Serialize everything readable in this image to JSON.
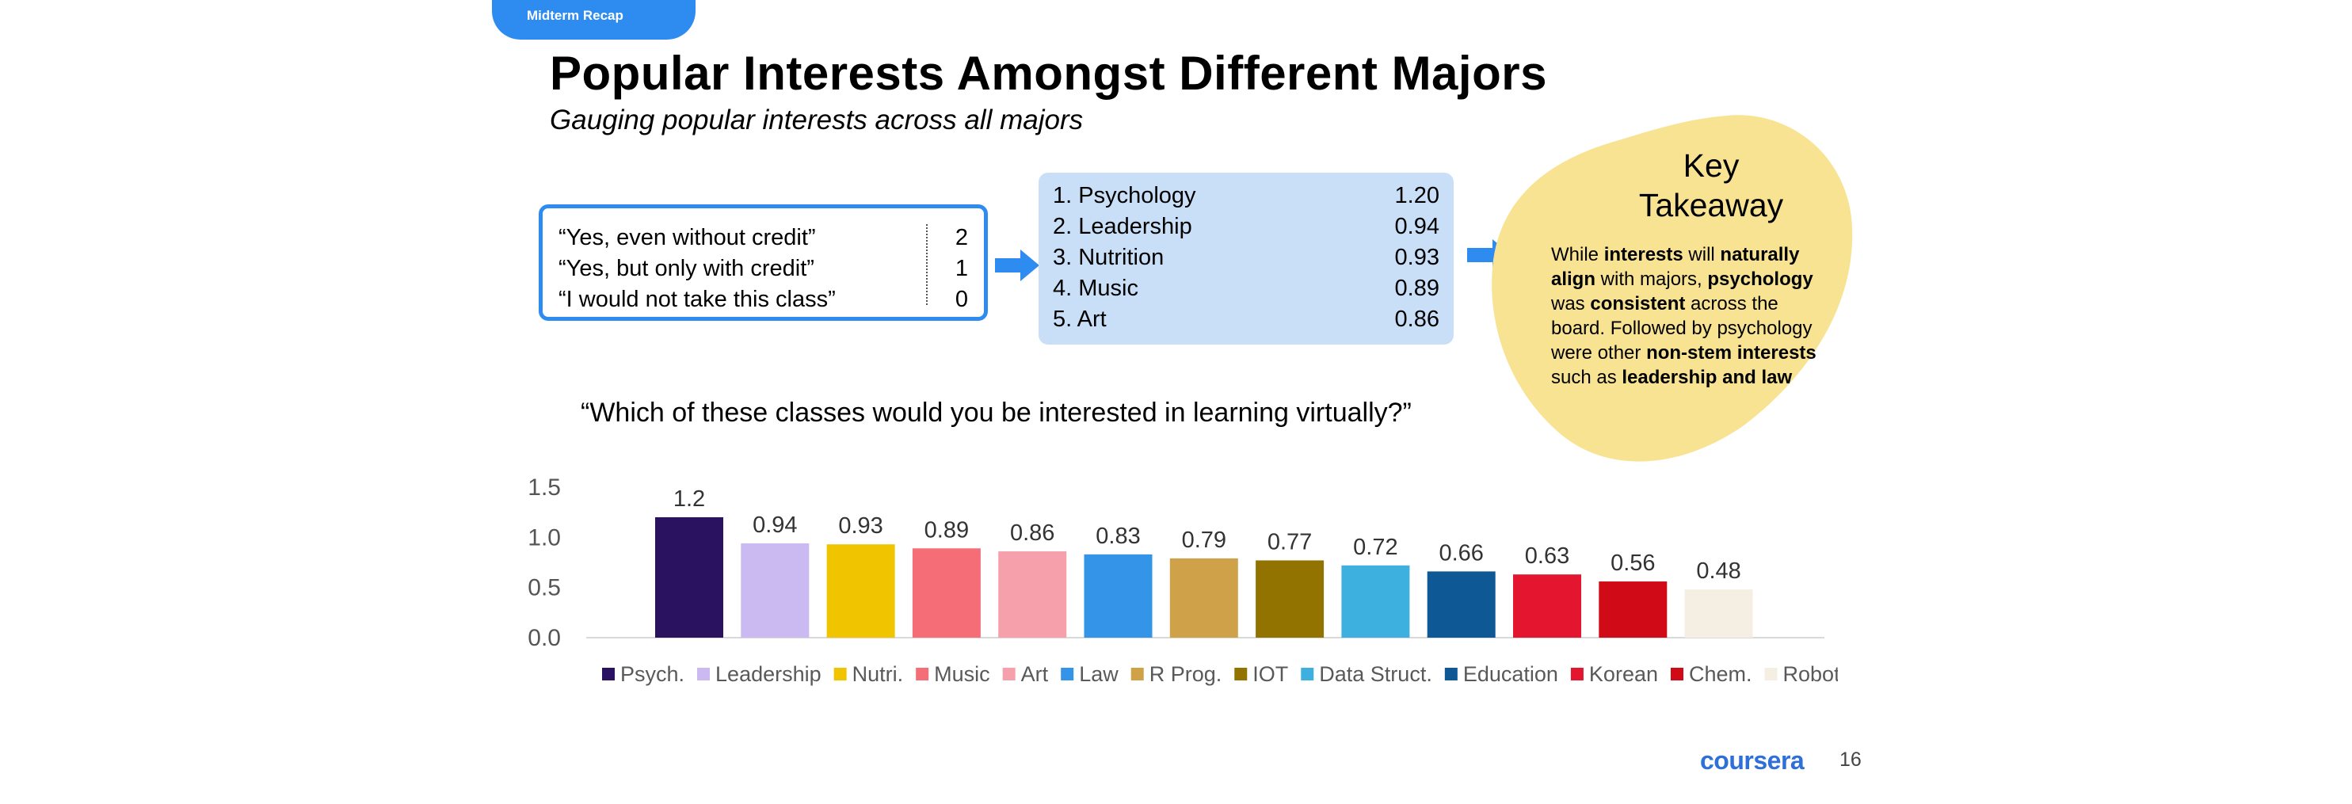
{
  "tag": "Midterm Recap",
  "title": "Popular Interests Amongst Different Majors",
  "subtitle": "Gauging popular interests across all majors",
  "scale": [
    {
      "label": "“Yes, even without credit”",
      "value": "2"
    },
    {
      "label": "“Yes, but only with credit”",
      "value": "1"
    },
    {
      "label": "“I would not take this class”",
      "value": "0"
    }
  ],
  "ranking": [
    {
      "label": "1. Psychology",
      "value": "1.20"
    },
    {
      "label": "2. Leadership",
      "value": "0.94"
    },
    {
      "label": "3. Nutrition",
      "value": "0.93"
    },
    {
      "label": "4. Music",
      "value": "0.89"
    },
    {
      "label": "5. Art",
      "value": "0.86"
    }
  ],
  "takeaway": {
    "title": "Key\nTakeaway",
    "p1": "While ",
    "b1": "interests",
    "p2": " will ",
    "b2": "naturally align",
    "p3": " with majors, ",
    "b3": "psychology",
    "p4": " was ",
    "b4": "consistent",
    "p5": " across the board. Followed by psychology were other ",
    "b5": "non-stem interests",
    "p6": " such as ",
    "b6": "leadership and law"
  },
  "question": "“Which of these classes would you be interested in learning virtually?”",
  "brand": "coursera",
  "page_number": "16",
  "colors": {
    "accent": "#2e8cf0",
    "rank_box": "#c9dff8",
    "takeaway": "#f8e393"
  },
  "chart_data": {
    "type": "bar",
    "categories": [
      "Psych.",
      "Leadership",
      "Nutri.",
      "Music",
      "Art",
      "Law",
      "R Prog.",
      "IOT",
      "Data Struct.",
      "Education",
      "Korean",
      "Chem.",
      "Robot."
    ],
    "values": [
      1.2,
      0.94,
      0.93,
      0.89,
      0.86,
      0.83,
      0.79,
      0.77,
      0.72,
      0.66,
      0.63,
      0.56,
      0.48
    ],
    "value_labels": [
      "1.2",
      "0.94",
      "0.93",
      "0.89",
      "0.86",
      "0.83",
      "0.79",
      "0.77",
      "0.72",
      "0.66",
      "0.63",
      "0.56",
      "0.48"
    ],
    "colors": [
      "#2a1260",
      "#cbb9f2",
      "#f0c500",
      "#f56d77",
      "#f5a0aa",
      "#3394e8",
      "#cfa148",
      "#927300",
      "#3eb0df",
      "#0f5896",
      "#e4162f",
      "#d10a18",
      "#f5efe3"
    ],
    "yticks": [
      "0.0",
      "0.5",
      "1.0",
      "1.5"
    ],
    "ylim": [
      0,
      1.5
    ],
    "grid": false,
    "legend_position": "bottom",
    "title": "",
    "xlabel": "",
    "ylabel": ""
  }
}
